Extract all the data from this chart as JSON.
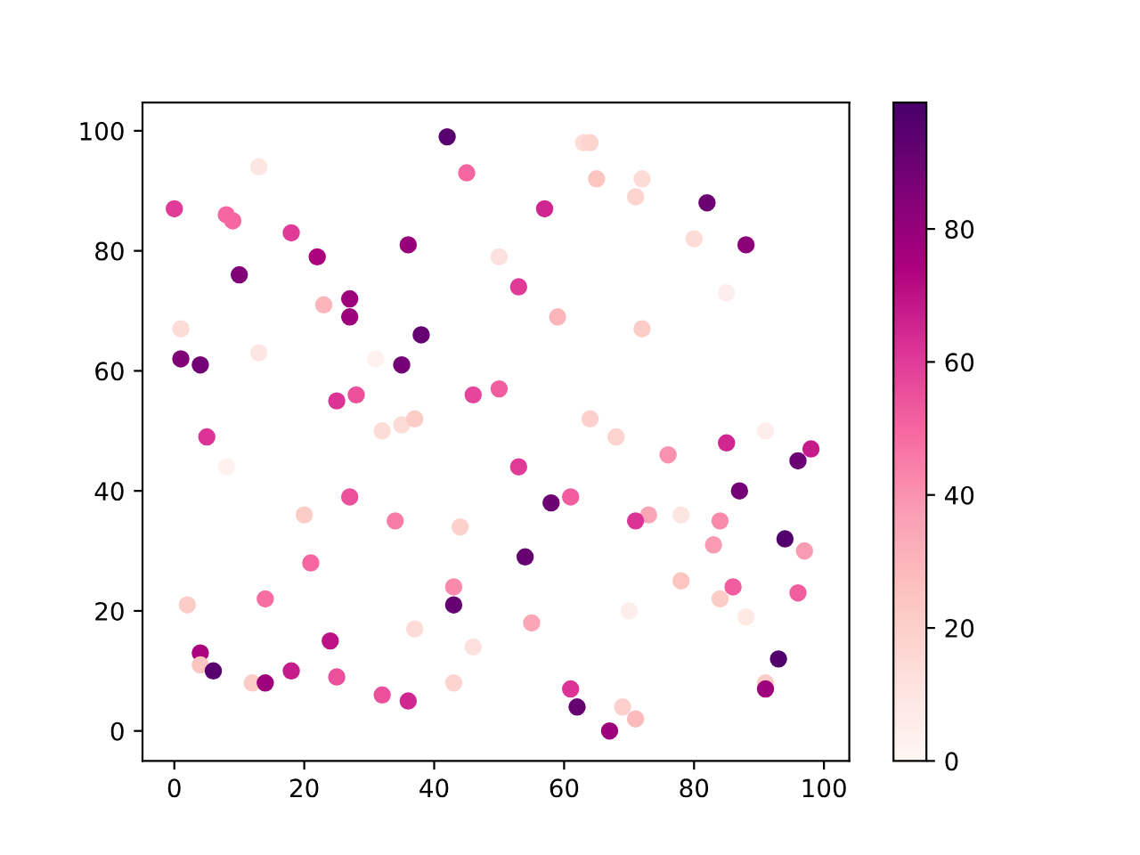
{
  "chart_data": {
    "type": "scatter",
    "marker": "circle",
    "clim": [
      0,
      99
    ],
    "cticks": [
      0,
      20,
      40,
      60,
      80
    ],
    "xlim": [
      -4.9,
      103.9
    ],
    "ylim": [
      -5.0,
      104.7
    ],
    "xticks": [
      0,
      20,
      40,
      60,
      80,
      100
    ],
    "yticks": [
      0,
      20,
      40,
      60,
      80,
      100
    ],
    "grid": false,
    "x": [
      42,
      45,
      13,
      63,
      64,
      65,
      72,
      0,
      8,
      9,
      57,
      82,
      71,
      18,
      22,
      10,
      36,
      80,
      88,
      50,
      53,
      85,
      23,
      27,
      27,
      59,
      1,
      72,
      38,
      13,
      1,
      4,
      35,
      31,
      28,
      25,
      46,
      50,
      32,
      35,
      37,
      64,
      68,
      76,
      85,
      91,
      98,
      96,
      5,
      8,
      53,
      61,
      27,
      58,
      87,
      73,
      78,
      71,
      84,
      34,
      20,
      44,
      83,
      97,
      54,
      94,
      21,
      78,
      86,
      43,
      96,
      14,
      84,
      43,
      2,
      88,
      70,
      37,
      55,
      24,
      46,
      4,
      4,
      6,
      18,
      93,
      25,
      12,
      14,
      43,
      61,
      91,
      91,
      32,
      36,
      62,
      69,
      71,
      67
    ],
    "values": [
      99,
      93,
      94,
      98,
      98,
      92,
      92,
      87,
      86,
      85,
      87,
      88,
      89,
      83,
      79,
      76,
      81,
      82,
      81,
      79,
      74,
      73,
      71,
      72,
      69,
      69,
      67,
      67,
      66,
      63,
      62,
      61,
      61,
      62,
      56,
      55,
      56,
      57,
      50,
      51,
      52,
      52,
      49,
      46,
      48,
      50,
      47,
      45,
      49,
      44,
      44,
      39,
      39,
      38,
      40,
      36,
      36,
      35,
      35,
      35,
      36,
      34,
      31,
      30,
      29,
      32,
      28,
      25,
      24,
      24,
      23,
      22,
      22,
      21,
      21,
      19,
      20,
      17,
      18,
      15,
      14,
      13,
      11,
      10,
      10,
      12,
      9,
      8,
      8,
      8,
      7,
      8,
      7,
      6,
      5,
      4,
      4,
      2,
      0
    ],
    "cvalues": [
      95,
      50,
      10,
      15,
      18,
      25,
      15,
      60,
      50,
      50,
      65,
      90,
      18,
      60,
      75,
      85,
      80,
      15,
      82,
      12,
      60,
      5,
      30,
      78,
      78,
      30,
      15,
      22,
      92,
      10,
      85,
      88,
      88,
      3,
      55,
      62,
      58,
      52,
      15,
      15,
      22,
      20,
      18,
      40,
      65,
      5,
      68,
      90,
      62,
      3,
      60,
      52,
      55,
      90,
      88,
      35,
      10,
      62,
      42,
      45,
      22,
      20,
      38,
      38,
      92,
      97,
      50,
      25,
      52,
      42,
      52,
      48,
      22,
      92,
      22,
      8,
      5,
      15,
      35,
      70,
      12,
      75,
      25,
      95,
      68,
      97,
      55,
      22,
      78,
      18,
      62,
      22,
      78,
      55,
      65,
      92,
      20,
      28,
      78
    ]
  }
}
